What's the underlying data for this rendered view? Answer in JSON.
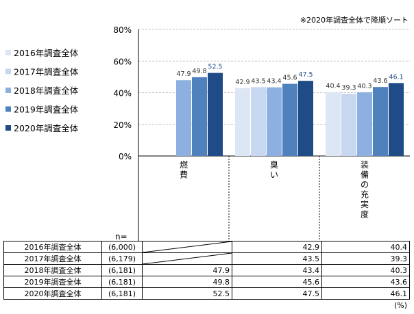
{
  "note": "※2020年調査全体で降順ソート",
  "unit": "(%)",
  "n_label": "n=",
  "colors": {
    "2016": "#dde6f4",
    "2017": "#c6d7ef",
    "2018": "#8db0e0",
    "2019": "#4f81bd",
    "2020": "#1f4b86",
    "label_2020": "#1f4b86",
    "grid": "#bfbfbf"
  },
  "chart_data": {
    "type": "bar",
    "title": "",
    "xlabel": "",
    "ylabel": "",
    "ylim": [
      0,
      80
    ],
    "y_ticks": [
      "0%",
      "20%",
      "40%",
      "60%",
      "80%"
    ],
    "categories": [
      "燃費",
      "臭い",
      "装備の充実度"
    ],
    "legend_position": "left",
    "series": [
      {
        "name": "2016年調査全体",
        "values": [
          null,
          42.9,
          40.4
        ]
      },
      {
        "name": "2017年調査全体",
        "values": [
          null,
          43.5,
          39.3
        ]
      },
      {
        "name": "2018年調査全体",
        "values": [
          47.9,
          43.4,
          40.3
        ]
      },
      {
        "name": "2019年調査全体",
        "values": [
          49.8,
          45.6,
          43.6
        ]
      },
      {
        "name": "2020年調査全体",
        "values": [
          52.5,
          47.5,
          46.1
        ]
      }
    ]
  },
  "table": {
    "rows": [
      {
        "label": "2016年調査全体",
        "n": "(6,000)",
        "values": [
          "",
          "42.9",
          "40.4"
        ]
      },
      {
        "label": "2017年調査全体",
        "n": "(6,179)",
        "values": [
          "",
          "43.5",
          "39.3"
        ]
      },
      {
        "label": "2018年調査全体",
        "n": "(6,181)",
        "values": [
          "47.9",
          "43.4",
          "40.3"
        ]
      },
      {
        "label": "2019年調査全体",
        "n": "(6,181)",
        "values": [
          "49.8",
          "45.6",
          "43.6"
        ]
      },
      {
        "label": "2020年調査全体",
        "n": "(6,181)",
        "values": [
          "52.5",
          "47.5",
          "46.1"
        ]
      }
    ]
  }
}
